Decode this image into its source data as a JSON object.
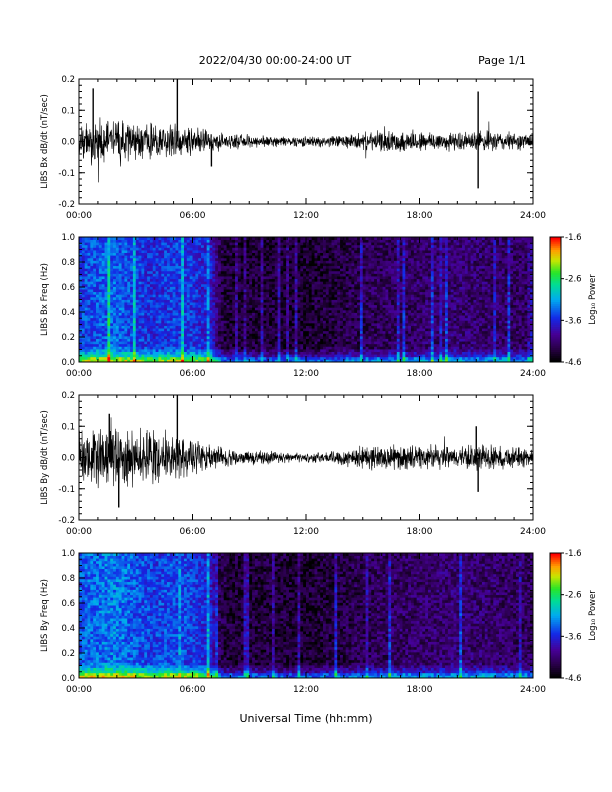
{
  "header": {
    "date_range": "2022/04/30  00:00-24:00 UT",
    "page": "Page 1/1"
  },
  "xlabel": "Universal Time (hh:mm)",
  "colors": {
    "trace": "#000000",
    "background": "#ffffff"
  },
  "chart_data": [
    {
      "type": "line",
      "id": "bx_wave",
      "ylabel": "LIBS Bx dB/dt (nT/sec)",
      "ylim": [
        -0.2,
        0.2
      ],
      "yticks": [
        "0.2",
        "0.1",
        "0.0",
        "-0.1",
        "-0.2"
      ],
      "ytick_values": [
        0.2,
        0.1,
        0.0,
        -0.1,
        -0.2
      ],
      "xlim": [
        0,
        24
      ],
      "xtick_labels": [
        "00:00",
        "06:00",
        "12:00",
        "18:00",
        "24:00"
      ],
      "xtick_values": [
        0,
        6,
        12,
        18,
        24
      ],
      "envelope": {
        "x": [
          0,
          1,
          2,
          3,
          4,
          5,
          6,
          7,
          8,
          9,
          10,
          11,
          12,
          13,
          14,
          15,
          16,
          17,
          18,
          19,
          20,
          21,
          22,
          23,
          24
        ],
        "amp": [
          0.05,
          0.06,
          0.07,
          0.05,
          0.05,
          0.05,
          0.04,
          0.03,
          0.02,
          0.02,
          0.015,
          0.015,
          0.015,
          0.015,
          0.02,
          0.025,
          0.03,
          0.03,
          0.03,
          0.03,
          0.025,
          0.03,
          0.03,
          0.025,
          0.025
        ]
      },
      "spikes": [
        {
          "x": 0.75,
          "y": 0.17
        },
        {
          "x": 5.2,
          "y": 0.21
        },
        {
          "x": 21.1,
          "y": 0.16
        },
        {
          "x": 21.1,
          "y": -0.15
        },
        {
          "x": 7.0,
          "y": -0.08
        }
      ]
    },
    {
      "type": "heatmap",
      "id": "bx_spec",
      "ylabel": "LIBS Bx Freq (Hz)",
      "ylim": [
        0.0,
        1.0
      ],
      "yticks": [
        "1.0",
        "0.8",
        "0.6",
        "0.4",
        "0.2",
        "0.0"
      ],
      "ytick_values": [
        1.0,
        0.8,
        0.6,
        0.4,
        0.2,
        0.0
      ],
      "xlim": [
        0,
        24
      ],
      "xtick_labels": [
        "00:00",
        "06:00",
        "12:00",
        "18:00",
        "24:00"
      ],
      "xtick_values": [
        0,
        6,
        12,
        18,
        24
      ],
      "colorbar": {
        "label": "Log₁₀ Power",
        "ticks": [
          "-1.6",
          "-2.6",
          "-3.6",
          "-4.6"
        ],
        "tick_values": [
          -1.6,
          -2.6,
          -3.6,
          -4.6
        ],
        "range": [
          -4.6,
          -1.6
        ]
      },
      "power_profile": {
        "x": [
          0,
          1,
          2,
          3,
          4,
          5,
          6,
          7,
          7.5,
          8,
          10,
          12,
          14,
          16,
          18,
          20,
          22,
          24
        ],
        "level": [
          -3.5,
          -3.4,
          -3.35,
          -3.5,
          -3.6,
          -3.5,
          -3.55,
          -3.7,
          -4.3,
          -4.35,
          -4.35,
          -4.4,
          -4.3,
          -4.2,
          -4.15,
          -4.1,
          -4.15,
          -4.2
        ]
      }
    },
    {
      "type": "line",
      "id": "by_wave",
      "ylabel": "LIBS By dB/dt (nT/sec)",
      "ylim": [
        -0.2,
        0.2
      ],
      "yticks": [
        "0.2",
        "0.1",
        "0.0",
        "-0.1",
        "-0.2"
      ],
      "ytick_values": [
        0.2,
        0.1,
        0.0,
        -0.1,
        -0.2
      ],
      "xlim": [
        0,
        24
      ],
      "xtick_labels": [
        "00:00",
        "06:00",
        "12:00",
        "18:00",
        "24:00"
      ],
      "xtick_values": [
        0,
        6,
        12,
        18,
        24
      ],
      "envelope": {
        "x": [
          0,
          1,
          2,
          3,
          4,
          5,
          6,
          7,
          8,
          9,
          10,
          11,
          12,
          13,
          14,
          15,
          16,
          17,
          18,
          19,
          20,
          21,
          22,
          23,
          24
        ],
        "amp": [
          0.07,
          0.09,
          0.1,
          0.08,
          0.07,
          0.07,
          0.05,
          0.04,
          0.025,
          0.02,
          0.02,
          0.015,
          0.015,
          0.015,
          0.025,
          0.035,
          0.035,
          0.035,
          0.035,
          0.035,
          0.03,
          0.04,
          0.035,
          0.03,
          0.03
        ]
      },
      "spikes": [
        {
          "x": 5.2,
          "y": 0.21
        },
        {
          "x": 1.6,
          "y": 0.14
        },
        {
          "x": 2.1,
          "y": -0.16
        },
        {
          "x": 21.1,
          "y": -0.11
        },
        {
          "x": 21.0,
          "y": 0.1
        }
      ]
    },
    {
      "type": "heatmap",
      "id": "by_spec",
      "ylabel": "LIBS By Freq (Hz)",
      "ylim": [
        0.0,
        1.0
      ],
      "yticks": [
        "1.0",
        "0.8",
        "0.6",
        "0.4",
        "0.2",
        "0.0"
      ],
      "ytick_values": [
        1.0,
        0.8,
        0.6,
        0.4,
        0.2,
        0.0
      ],
      "xlim": [
        0,
        24
      ],
      "xtick_labels": [
        "00:00",
        "06:00",
        "12:00",
        "18:00",
        "24:00"
      ],
      "xtick_values": [
        0,
        6,
        12,
        18,
        24
      ],
      "colorbar": {
        "label": "Log₁₀ Power",
        "ticks": [
          "-1.6",
          "-2.6",
          "-3.6",
          "-4.6"
        ],
        "tick_values": [
          -1.6,
          -2.6,
          -3.6,
          -4.6
        ],
        "range": [
          -4.6,
          -1.6
        ]
      },
      "power_profile": {
        "x": [
          0,
          1,
          2,
          3,
          4,
          5,
          6,
          7,
          7.5,
          8,
          10,
          12,
          14,
          16,
          18,
          20,
          22,
          24
        ],
        "level": [
          -3.4,
          -3.3,
          -3.25,
          -3.4,
          -3.5,
          -3.45,
          -3.5,
          -3.7,
          -4.3,
          -4.35,
          -4.35,
          -4.4,
          -4.3,
          -4.2,
          -4.15,
          -4.1,
          -4.15,
          -4.2
        ]
      }
    }
  ]
}
